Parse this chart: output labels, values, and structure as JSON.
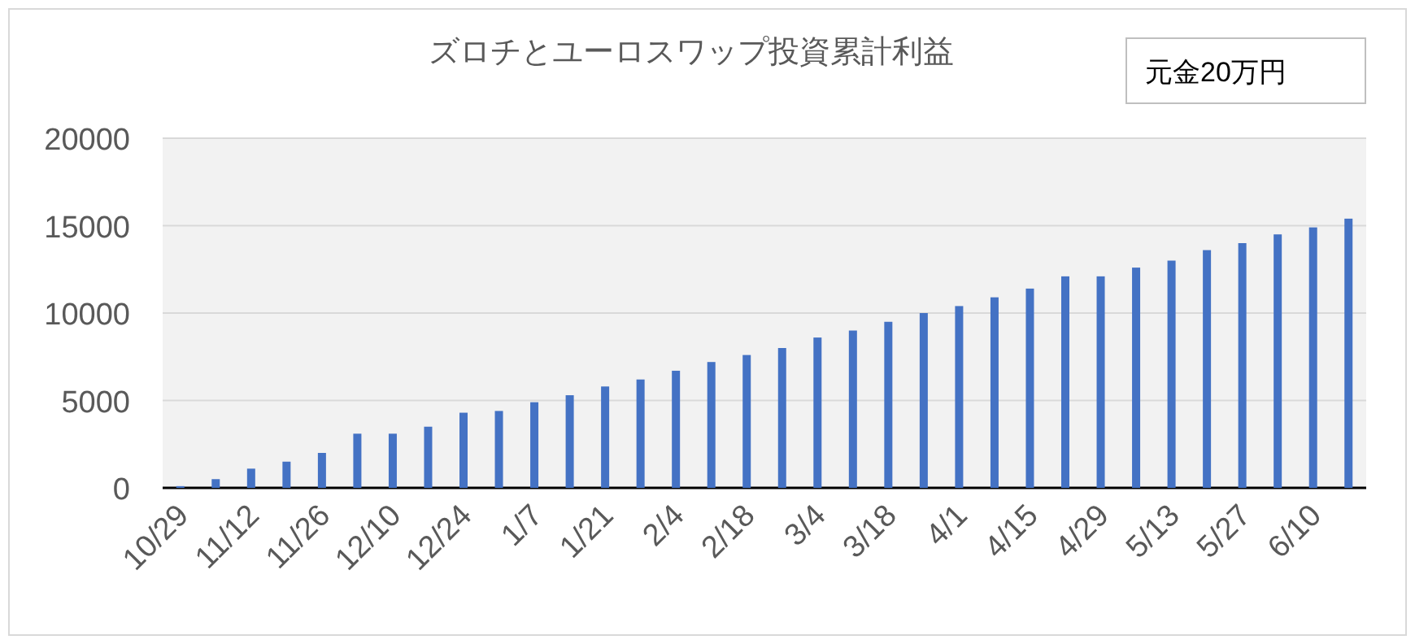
{
  "chart_data": {
    "type": "bar",
    "title": "ズロチとユーロスワップ投資累計利益",
    "categories": [
      "10/29",
      null,
      "11/12",
      null,
      "11/26",
      null,
      "12/10",
      null,
      "12/24",
      null,
      "1/7",
      null,
      "1/21",
      null,
      "2/4",
      null,
      "2/18",
      null,
      "3/4",
      null,
      "3/18",
      null,
      "4/1",
      null,
      "4/15",
      null,
      "4/29",
      null,
      "5/13",
      null,
      "5/27",
      null,
      "6/10",
      null
    ],
    "values": [
      100,
      500,
      1100,
      1500,
      2000,
      3100,
      3100,
      3500,
      4300,
      4400,
      4900,
      5300,
      5800,
      6200,
      6700,
      7200,
      7600,
      8000,
      8600,
      9000,
      9500,
      10000,
      10400,
      10900,
      11400,
      12100,
      12100,
      12600,
      13000,
      13600,
      14000,
      14500,
      14900,
      15400
    ],
    "color": "#4472c4",
    "ylim": [
      0,
      20000
    ],
    "yticks": [
      0,
      5000,
      10000,
      15000,
      20000
    ],
    "grid": "y",
    "annotations": [
      "元金20万円"
    ]
  }
}
